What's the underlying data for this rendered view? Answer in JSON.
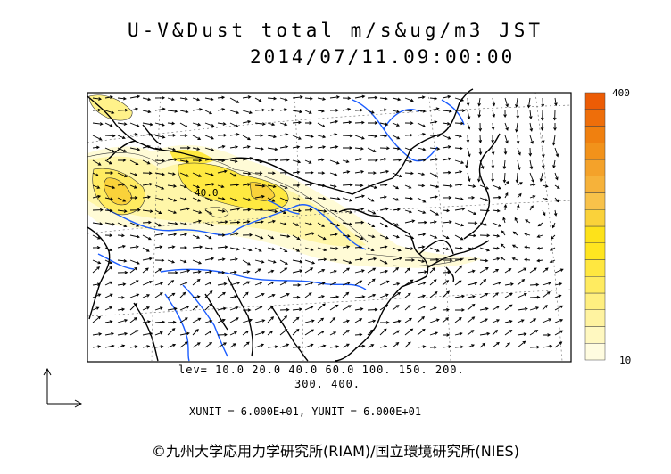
{
  "title": {
    "line1": "U-V&Dust total m/s&ug/m3 JST",
    "line2": "2014/07/11.09:00:00"
  },
  "map": {
    "contour_label": "40.0",
    "coast_color": "#000000",
    "river_color": "#1a5cff",
    "vector_color": "#000000"
  },
  "colorbar": {
    "max_label": "400",
    "min_label": "10",
    "colors": [
      "#fffce0",
      "#fff8c0",
      "#fff3a0",
      "#ffef80",
      "#ffeb60",
      "#ffe740",
      "#ffe520",
      "#fde21a",
      "#fad23a",
      "#f8c24a",
      "#f6b23a",
      "#f4a22a",
      "#f2921a",
      "#f0800f",
      "#ee6e0a",
      "#ec5c05"
    ]
  },
  "levels": {
    "line1": "lev= 10.0 20.0 40.0 60.0 100. 150. 200.",
    "line2": "300. 400."
  },
  "units": "XUNIT = 6.000E+01, YUNIT = 6.000E+01",
  "copyright": "©九州大学応用力学研究所(RIAM)/国立環境研究所(NIES)"
}
